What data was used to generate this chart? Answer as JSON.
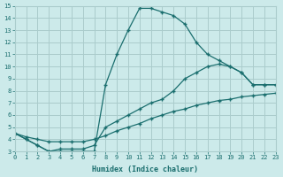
{
  "background_color": "#cceaea",
  "grid_color": "#aacccc",
  "line_color": "#1a6e6e",
  "curve1_x": [
    0,
    1,
    2,
    3,
    4,
    5,
    6,
    7,
    8,
    9,
    10,
    11,
    12,
    13,
    14,
    15,
    16,
    17,
    18,
    19,
    20,
    21,
    22,
    23
  ],
  "curve1_y": [
    4.5,
    4.0,
    3.5,
    3.0,
    3.0,
    3.0,
    3.0,
    3.0,
    8.5,
    11.0,
    13.0,
    14.8,
    14.8,
    14.5,
    14.2,
    13.5,
    12.0,
    11.0,
    10.5,
    10.0,
    9.5,
    8.5,
    8.5,
    8.5
  ],
  "curve2_x": [
    0,
    1,
    2,
    3,
    4,
    5,
    6,
    7,
    8,
    9,
    10,
    11,
    12,
    13,
    14,
    15,
    16,
    17,
    18,
    19,
    20,
    21,
    22,
    23
  ],
  "curve2_y": [
    4.5,
    4.0,
    3.5,
    3.0,
    3.2,
    3.2,
    3.2,
    3.5,
    5.0,
    5.5,
    6.0,
    6.5,
    7.0,
    7.3,
    8.0,
    9.0,
    9.5,
    10.0,
    10.2,
    10.0,
    9.5,
    8.5,
    8.5,
    8.5
  ],
  "curve3_x": [
    0,
    1,
    2,
    3,
    4,
    5,
    6,
    7,
    8,
    9,
    10,
    11,
    12,
    13,
    14,
    15,
    16,
    17,
    18,
    19,
    20,
    21,
    22,
    23
  ],
  "curve3_y": [
    4.5,
    4.2,
    4.0,
    3.8,
    3.8,
    3.8,
    3.8,
    4.0,
    4.3,
    4.7,
    5.0,
    5.3,
    5.7,
    6.0,
    6.3,
    6.5,
    6.8,
    7.0,
    7.2,
    7.3,
    7.5,
    7.6,
    7.7,
    7.8
  ],
  "xlabel": "Humidex (Indice chaleur)",
  "xlim": [
    0,
    23
  ],
  "ylim": [
    3,
    15
  ],
  "xticks": [
    0,
    1,
    2,
    3,
    4,
    5,
    6,
    7,
    8,
    9,
    10,
    11,
    12,
    13,
    14,
    15,
    16,
    17,
    18,
    19,
    20,
    21,
    22,
    23
  ],
  "yticks": [
    3,
    4,
    5,
    6,
    7,
    8,
    9,
    10,
    11,
    12,
    13,
    14,
    15
  ]
}
